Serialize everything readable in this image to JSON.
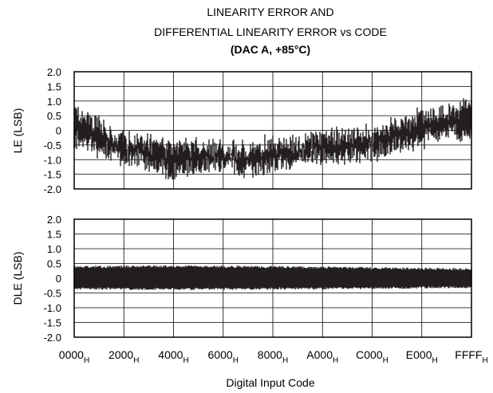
{
  "chart_data": [
    {
      "type": "line",
      "title": "LINEARITY ERROR AND",
      "title_line2": "DIFFERENTIAL LINEARITY ERROR vs CODE",
      "subtitle": "(DAC A, +85°C)",
      "ylabel": "LE (LSB)",
      "xlabel": "",
      "ylim": [
        -2.0,
        2.0
      ],
      "yticks": [
        "2.0",
        "1.5",
        "1.0",
        "0.5",
        "0",
        "-0.5",
        "-1.0",
        "-1.5",
        "-2.0"
      ],
      "xlim": [
        0,
        65535
      ],
      "grid": true,
      "series": [
        {
          "x": [
            0,
            4096,
            8192,
            12288,
            16384,
            20480,
            24576,
            28672,
            32768,
            36864,
            40960,
            45056,
            49152,
            53248,
            57344,
            61440,
            65535
          ],
          "center": [
            0.05,
            -0.2,
            -0.55,
            -0.7,
            -0.95,
            -0.95,
            -0.85,
            -0.95,
            -0.75,
            -0.7,
            -0.6,
            -0.45,
            -0.45,
            -0.2,
            0.1,
            0.25,
            0.35
          ],
          "upper": [
            0.7,
            0.3,
            -0.2,
            -0.3,
            -0.5,
            -0.45,
            -0.5,
            -0.55,
            -0.3,
            -0.3,
            -0.15,
            0.0,
            -0.05,
            0.3,
            0.6,
            0.7,
            1.0
          ],
          "lower": [
            -0.5,
            -0.7,
            -1.0,
            -1.15,
            -1.6,
            -1.4,
            -1.3,
            -1.45,
            -1.25,
            -1.05,
            -1.0,
            -1.0,
            -0.9,
            -0.7,
            -0.4,
            -0.2,
            -0.25
          ]
        }
      ]
    },
    {
      "type": "line",
      "ylabel": "DLE (LSB)",
      "xlabel": "Digital Input Code",
      "ylim": [
        -2.0,
        2.0
      ],
      "yticks": [
        "2.0",
        "1.5",
        "1.0",
        "0.5",
        "0",
        "-0.5",
        "-1.0",
        "-1.5",
        "-2.0"
      ],
      "xlim": [
        0,
        65535
      ],
      "xticks": [
        "0000",
        "2000",
        "4000",
        "6000",
        "8000",
        "A000",
        "C000",
        "E000",
        "FFFF"
      ],
      "xtick_subscript": "H",
      "grid": true,
      "series": [
        {
          "x": [
            0,
            16384,
            32768,
            49152,
            65535
          ],
          "upper": [
            0.38,
            0.4,
            0.38,
            0.34,
            0.3
          ],
          "lower": [
            -0.35,
            -0.36,
            -0.35,
            -0.33,
            -0.3
          ]
        }
      ]
    }
  ]
}
